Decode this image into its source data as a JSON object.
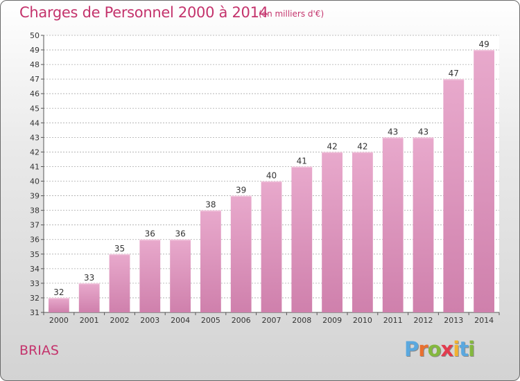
{
  "header": {
    "title": "Charges de Personnel 2000 à 2014",
    "subtitle": "(en milliers d'€)"
  },
  "footer": {
    "commune": "BRIAS",
    "logo_letters": [
      "P",
      "r",
      "o",
      "x",
      "i",
      "t",
      "i"
    ],
    "logo_colors": [
      "#5aa8df",
      "#e9702f",
      "#84b83e",
      "#e23b4e",
      "#f2b230",
      "#5aa8df",
      "#84b83e"
    ]
  },
  "colors": {
    "bar": "#cf80ac",
    "bar_light": "#e8a9cc",
    "accent": "#c4336c",
    "grid": "#a9a9a9"
  },
  "chart_data": {
    "type": "bar",
    "categories": [
      "2000",
      "2001",
      "2002",
      "2003",
      "2004",
      "2005",
      "2006",
      "2007",
      "2008",
      "2009",
      "2010",
      "2011",
      "2012",
      "2013",
      "2014"
    ],
    "values": [
      32,
      33,
      35,
      36,
      36,
      38,
      39,
      40,
      41,
      42,
      42,
      43,
      43,
      47,
      49
    ],
    "ylim": [
      31,
      50
    ],
    "yticks": [
      31,
      32,
      33,
      34,
      35,
      36,
      37,
      38,
      39,
      40,
      41,
      42,
      43,
      44,
      45,
      46,
      47,
      48,
      49,
      50
    ],
    "grid": true,
    "legend": "none"
  }
}
